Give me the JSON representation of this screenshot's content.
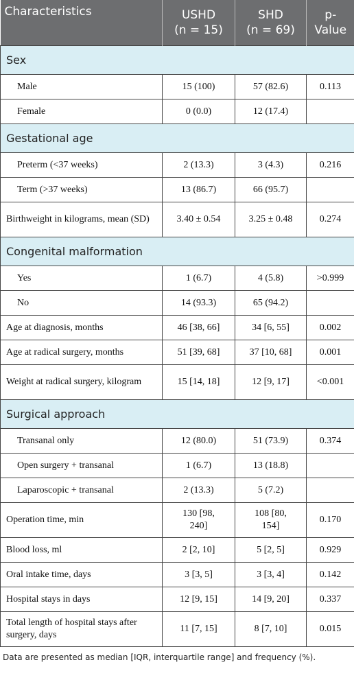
{
  "table": {
    "header": [
      [
        "Characteristics"
      ],
      [
        "USHD",
        "(n = 15)"
      ],
      [
        "SHD",
        "(n = 69)"
      ],
      [
        "p-",
        "Value"
      ]
    ],
    "body": [
      {
        "section": "Sex",
        "rows": [
          [
            "Male",
            "15 (100)",
            "57 (82.6)",
            "0.113"
          ],
          [
            "Female",
            "0 (0.0)",
            "12 (17.4)",
            ""
          ]
        ]
      },
      {
        "section": "Gestational age",
        "rows": [
          [
            "Preterm (<37 weeks)",
            "2 (13.3)",
            "3 (4.3)",
            "0.216"
          ],
          [
            "Term (>37 weeks)",
            "13 (86.7)",
            "66 (95.7)",
            ""
          ]
        ]
      },
      {
        "row": [
          "Birthweight in kilograms, mean (SD)",
          "3.40 ± 0.54",
          "3.25 ± 0.48",
          "0.274"
        ]
      },
      {
        "section": "Congenital malformation",
        "rows": [
          [
            "Yes",
            "1 (6.7)",
            "4 (5.8)",
            ">0.999"
          ],
          [
            "No",
            "14 (93.3)",
            "65 (94.2)",
            ""
          ]
        ]
      },
      {
        "row": [
          "Age at diagnosis, months",
          "46 [38, 66]",
          "34 [6, 55]",
          "0.002"
        ]
      },
      {
        "row": [
          "Age at radical surgery, months",
          "51 [39, 68]",
          "37 [10, 68]",
          "0.001"
        ]
      },
      {
        "row": [
          "Weight at radical surgery, kilogram",
          "15 [14, 18]",
          "12 [9, 17]",
          "<0.001"
        ]
      },
      {
        "section": "Surgical approach",
        "rows": [
          [
            "Transanal only",
            "12 (80.0)",
            "51 (73.9)",
            "0.374"
          ],
          [
            "Open surgery + transanal",
            "1 (6.7)",
            "13 (18.8)",
            ""
          ],
          [
            "Laparoscopic + transanal",
            "2 (13.3)",
            "5 (7.2)",
            ""
          ]
        ]
      },
      {
        "row": [
          "Operation time, min",
          "130 [98, 240]",
          "108 [80, 154]",
          "0.170"
        ]
      },
      {
        "row": [
          "Blood loss, ml",
          "2 [2, 10]",
          "5 [2, 5]",
          "0.929"
        ]
      },
      {
        "row": [
          "Oral intake time, days",
          "3 [3, 5]",
          "3 [3, 4]",
          "0.142"
        ]
      },
      {
        "row": [
          "Hospital stays in days",
          "12 [9, 15]",
          "14 [9, 20]",
          "0.337"
        ]
      },
      {
        "row": [
          "Total length of hospital stays after surgery, days",
          "11 [7, 15]",
          "8 [7, 10]",
          "0.015"
        ]
      }
    ],
    "footnote": "Data are presented as median [IQR, interquartile range] and frequency (%)."
  }
}
